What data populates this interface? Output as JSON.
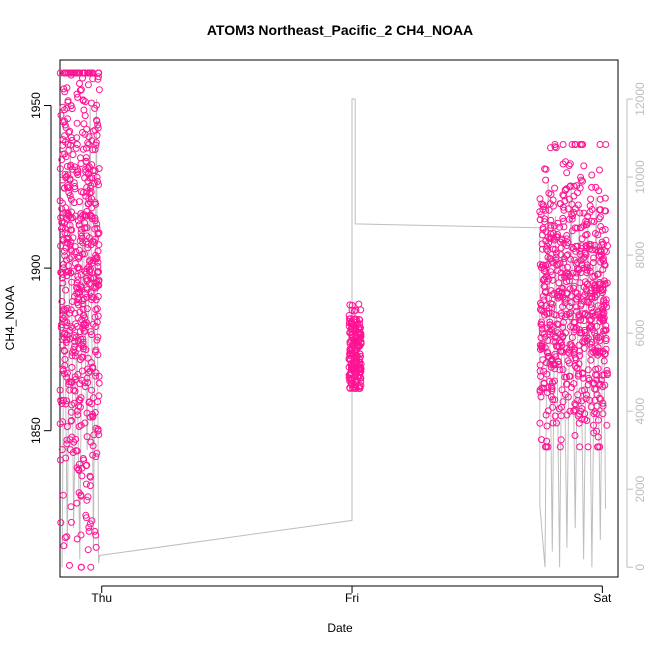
{
  "chart_data": {
    "type": "scatter",
    "title": "ATOM3 Northeast_Pacific_2 CH4_NOAA",
    "xlabel": "Date",
    "ylabel": "CH4_NOAA",
    "x_tick_labels": [
      "Thu",
      "Fri",
      "Sat"
    ],
    "x_ticks_hours": [
      0,
      24,
      48
    ],
    "xlim_hours": [
      -4.0,
      49.5
    ],
    "ylim": [
      1805,
      1964
    ],
    "y_ticks": [
      1850,
      1900,
      1950
    ],
    "y2lim": [
      -250,
      13000
    ],
    "y2_ticks": [
      0,
      2000,
      4000,
      6000,
      8000,
      10000,
      12000
    ],
    "grid": false,
    "legend": "none",
    "colors": {
      "points": "#ff1493",
      "line": "#bebebe",
      "right_axis": "#bebebe"
    },
    "series": [
      {
        "kind": "points",
        "axis": "left",
        "segments": [
          {
            "x_range_hours": [
              -4.0,
              -0.2
            ],
            "y_range": [
              1808,
              1960
            ],
            "center": 1900,
            "spread": 38,
            "count": 600
          },
          {
            "x_range_hours": [
              23.7,
              24.9
            ],
            "y_range": [
              1863,
              1899
            ],
            "center": 1873,
            "spread": 7,
            "count": 200
          },
          {
            "x_range_hours": [
              42.0,
              48.5
            ],
            "y_range": [
              1845,
              1938
            ],
            "center": 1890,
            "spread": 22,
            "count": 700
          }
        ]
      },
      {
        "kind": "line",
        "axis": "right",
        "points": [
          [
            -3.8,
            0
          ],
          [
            -3.6,
            8000
          ],
          [
            -3.3,
            500
          ],
          [
            -3.0,
            11000
          ],
          [
            -2.7,
            1000
          ],
          [
            -2.4,
            6000
          ],
          [
            -2.1,
            200
          ],
          [
            -1.8,
            9500
          ],
          [
            -1.4,
            3000
          ],
          [
            -1.1,
            11800
          ],
          [
            -0.8,
            500
          ],
          [
            -0.5,
            12000
          ],
          [
            -0.3,
            100
          ],
          [
            -0.2,
            300
          ],
          [
            24.0,
            1200
          ],
          [
            24.0,
            12000
          ],
          [
            24.3,
            12000
          ],
          [
            24.3,
            8800
          ],
          [
            42.0,
            8700
          ],
          [
            42.0,
            1600
          ],
          [
            42.5,
            0
          ],
          [
            42.8,
            10000
          ],
          [
            43.2,
            400
          ],
          [
            43.5,
            9000
          ],
          [
            43.9,
            0
          ],
          [
            44.2,
            8500
          ],
          [
            44.6,
            500
          ],
          [
            45.0,
            9700
          ],
          [
            45.4,
            1000
          ],
          [
            45.8,
            9300
          ],
          [
            46.2,
            200
          ],
          [
            46.6,
            8800
          ],
          [
            47.0,
            0
          ],
          [
            47.4,
            9500
          ],
          [
            47.8,
            700
          ],
          [
            48.1,
            8000
          ],
          [
            48.3,
            1500
          ]
        ]
      }
    ]
  }
}
